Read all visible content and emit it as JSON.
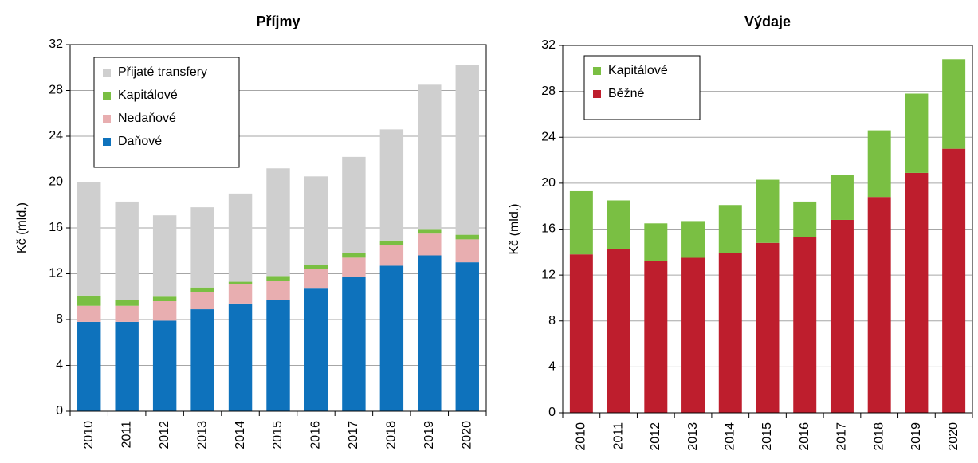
{
  "chart_data": [
    {
      "type": "bar",
      "stacked": true,
      "title": "Příjmy",
      "y_label": "Kč (mld.)",
      "categories": [
        "2010",
        "2011",
        "2012",
        "2013",
        "2014",
        "2015",
        "2016",
        "2017",
        "2018",
        "2019",
        "2020"
      ],
      "series": [
        {
          "name": "Daňové",
          "color": "#0e72bc",
          "values": [
            7.8,
            7.8,
            7.9,
            8.9,
            9.4,
            9.7,
            10.7,
            11.7,
            12.7,
            13.6,
            13.0
          ]
        },
        {
          "name": "Nedaňové",
          "color": "#e8aeb0",
          "values": [
            1.4,
            1.4,
            1.7,
            1.5,
            1.7,
            1.7,
            1.7,
            1.7,
            1.8,
            1.9,
            2.0
          ]
        },
        {
          "name": "Kapitálové",
          "color": "#7abf43",
          "values": [
            0.9,
            0.5,
            0.4,
            0.4,
            0.2,
            0.4,
            0.4,
            0.4,
            0.4,
            0.4,
            0.4
          ]
        },
        {
          "name": "Přijaté transfery",
          "color": "#cfcfcf",
          "values": [
            9.9,
            8.6,
            7.1,
            7.0,
            7.7,
            9.4,
            7.7,
            8.4,
            9.7,
            12.6,
            14.8
          ]
        }
      ],
      "ylim": [
        0,
        32
      ],
      "yticks": [
        0,
        4,
        8,
        12,
        16,
        20,
        24,
        28,
        32
      ],
      "grid": true,
      "legend": "upper left"
    },
    {
      "type": "bar",
      "stacked": true,
      "title": "Výdaje",
      "y_label": "Kč (mld.)",
      "categories": [
        "2010",
        "2011",
        "2012",
        "2013",
        "2014",
        "2015",
        "2016",
        "2017",
        "2018",
        "2019",
        "2020"
      ],
      "series": [
        {
          "name": "Běžné",
          "color": "#be1e2d",
          "values": [
            13.8,
            14.3,
            13.2,
            13.5,
            13.9,
            14.8,
            15.3,
            16.8,
            18.8,
            20.9,
            23.0
          ]
        },
        {
          "name": "Kapitálové",
          "color": "#7abf43",
          "values": [
            5.5,
            4.2,
            3.3,
            3.2,
            4.2,
            5.5,
            3.1,
            3.9,
            5.8,
            6.9,
            7.8
          ]
        }
      ],
      "ylim": [
        0,
        32
      ],
      "yticks": [
        0,
        4,
        8,
        12,
        16,
        20,
        24,
        28,
        32
      ],
      "grid": true,
      "legend": "upper left"
    }
  ]
}
